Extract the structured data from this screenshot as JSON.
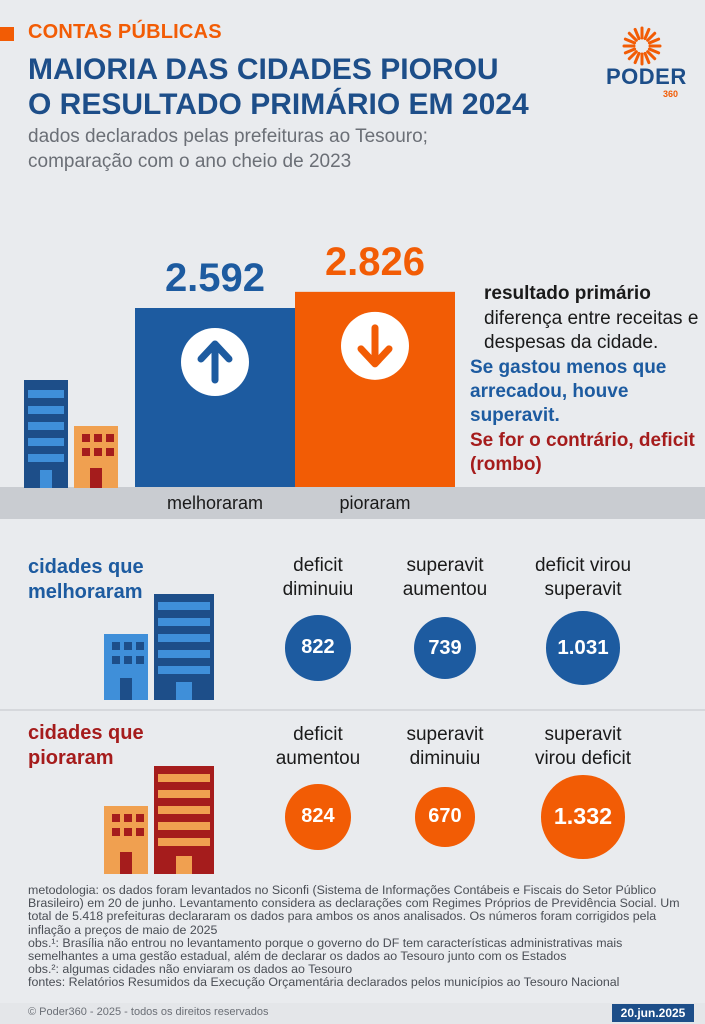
{
  "header": {
    "kicker": "CONTAS PÚBLICAS",
    "title_line1": "MAIORIA DAS CIDADES PIOROU",
    "title_line2": "O RESULTADO PRIMÁRIO EM 2024",
    "subtitle_line1": "dados declarados pelas prefeituras ao Tesouro;",
    "subtitle_line2": "comparação com o ano cheio de 2023",
    "logo_name": "PODER",
    "logo_sub": "360"
  },
  "colors": {
    "blue": "#1d5ba0",
    "orange": "#f25c05",
    "red": "#a51c1c",
    "navy": "#1d4e89"
  },
  "chart_data": [
    {
      "type": "bar",
      "categories": [
        "melhoraram",
        "pioraram"
      ],
      "values": [
        2592,
        2826
      ],
      "value_labels": [
        "2.592",
        "2.826"
      ],
      "colors": [
        "#1d5ba0",
        "#f25c05"
      ],
      "icons": [
        "arrow-up-icon",
        "arrow-down-icon"
      ]
    }
  ],
  "legend": {
    "head": "resultado primário",
    "text": "diferença entre receitas e despesas da cidade.",
    "blue_text": "Se gastou menos que arrecadou, houve superavit.",
    "red_text": "Se for o contrário, deficit (rombo)"
  },
  "improved": {
    "title_line1": "cidades que",
    "title_line2": "melhoraram",
    "items": [
      {
        "label1": "deficit",
        "label2": "diminuiu",
        "value": 822,
        "value_label": "822"
      },
      {
        "label1": "superavit",
        "label2": "aumentou",
        "value": 739,
        "value_label": "739"
      },
      {
        "label1": "deficit virou",
        "label2": "superavit",
        "value": 1031,
        "value_label": "1.031"
      }
    ]
  },
  "worsened": {
    "title_line1": "cidades que",
    "title_line2": "pioraram",
    "items": [
      {
        "label1": "deficit",
        "label2": "aumentou",
        "value": 824,
        "value_label": "824"
      },
      {
        "label1": "superavit",
        "label2": "diminuiu",
        "value": 670,
        "value_label": "670"
      },
      {
        "label1": "superavit",
        "label2": "virou deficit",
        "value": 1332,
        "value_label": "1.332"
      }
    ]
  },
  "notes": {
    "methodology": "metodologia: os dados foram levantados no Siconfi (Sistema de Informações Contábeis e Fiscais do Setor Público Brasileiro) em 20 de junho. Levantamento considera as declarações com Regimes Próprios de Previdência Social. Um total de 5.418 prefeituras declararam os dados para ambos os anos analisados. Os números foram corrigidos pela inflação a preços de maio de 2025",
    "obs1": "obs.¹: Brasília não entrou no levantamento porque o governo do DF tem características administrativas mais semelhantes a uma gestão estadual, além de declarar os dados ao Tesouro junto com os Estados",
    "obs2": "obs.²: algumas cidades não enviaram os dados ao Tesouro",
    "sources": "fontes: Relatórios Resumidos da Execução Orçamentária declarados pelos municípios ao Tesouro Nacional"
  },
  "footer": {
    "copyright": "© Poder360 - 2025 - todos os direitos reservados",
    "date": "20.jun.2025"
  }
}
